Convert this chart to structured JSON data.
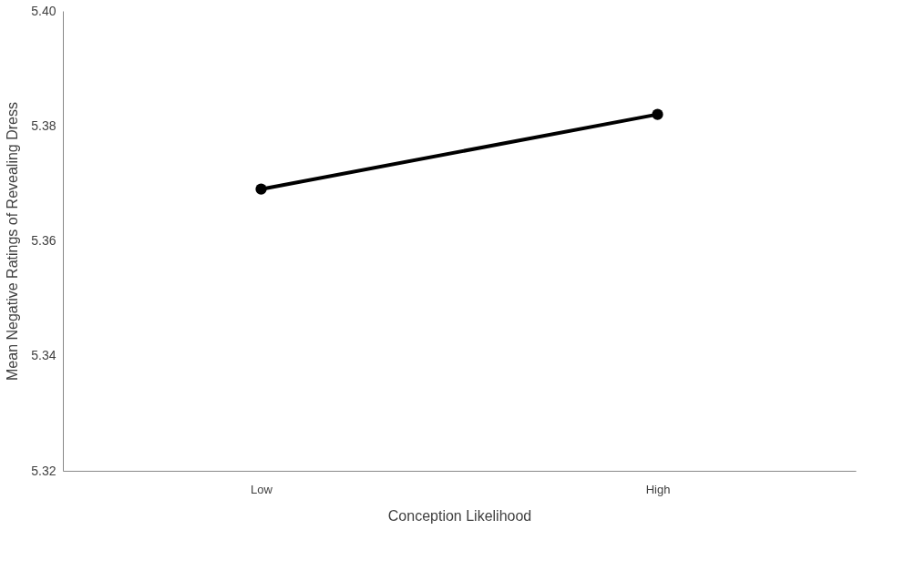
{
  "chart_data": {
    "type": "line",
    "xlabel": "Conception Likelihood",
    "ylabel": "Mean Negative Ratings of Revealing Dress",
    "categories": [
      "Low",
      "High"
    ],
    "series": [
      {
        "color": "#000000",
        "values": [
          5.369,
          5.382
        ]
      }
    ],
    "ylim": [
      5.32,
      5.4
    ],
    "yticks": [
      {
        "value": 5.32,
        "label": "5.32"
      },
      {
        "value": 5.34,
        "label": "5.34"
      },
      {
        "value": 5.36,
        "label": "5.36"
      },
      {
        "value": 5.38,
        "label": "5.38"
      },
      {
        "value": 5.4,
        "label": "5.40"
      }
    ],
    "grid": false,
    "marker": "circle",
    "line_style": "solid"
  }
}
